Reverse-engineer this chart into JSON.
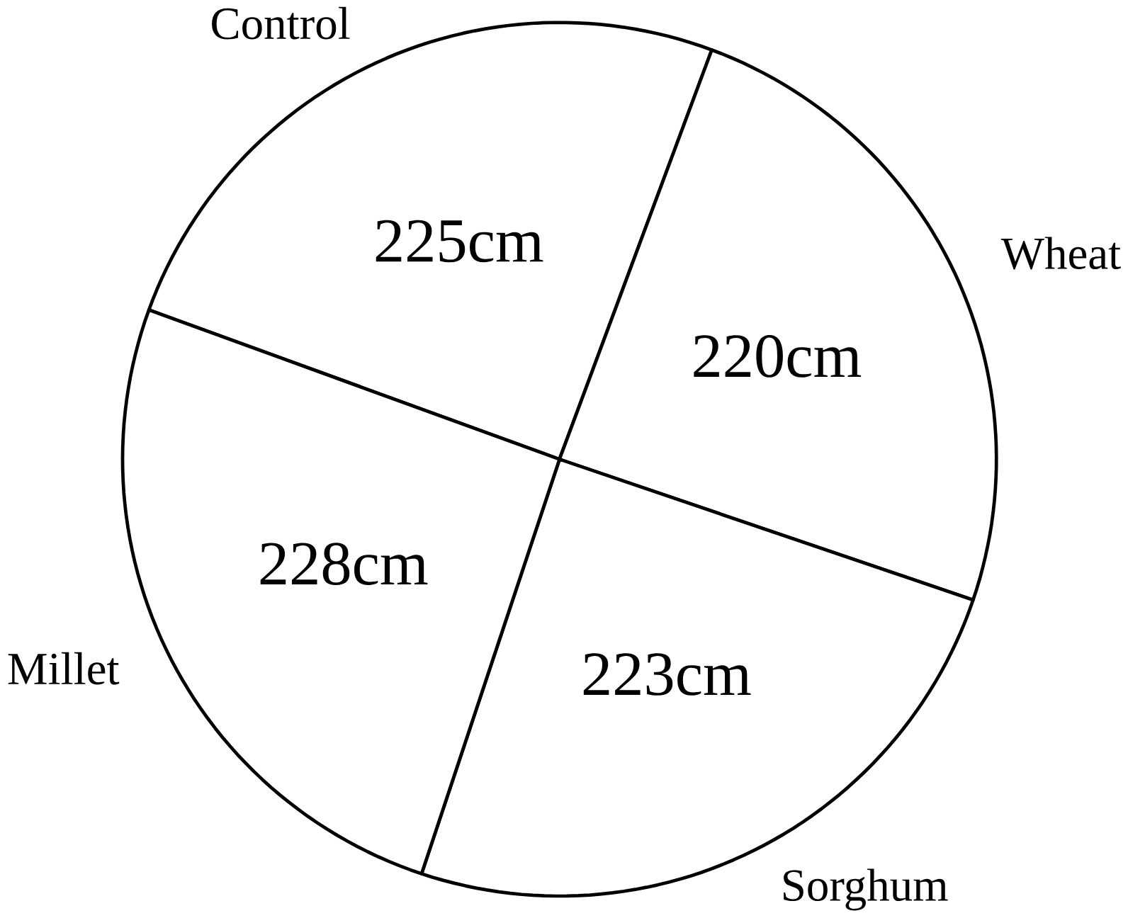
{
  "chart_data": {
    "type": "pie",
    "categories": [
      "Control",
      "Wheat",
      "Sorghum",
      "Millet"
    ],
    "values": [
      225,
      220,
      223,
      228
    ],
    "value_labels": [
      "225cm",
      "220cm",
      "223cm",
      "228cm"
    ],
    "colors": [
      "#ffffff",
      "#ffffff",
      "#ffffff",
      "#ffffff"
    ]
  }
}
